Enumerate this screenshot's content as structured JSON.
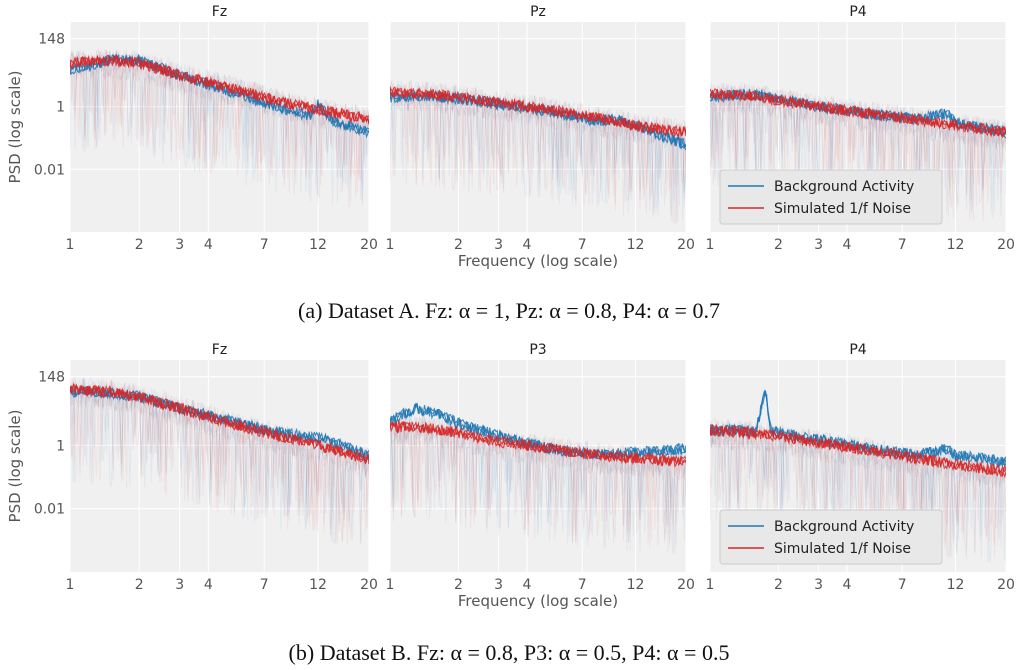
{
  "chart_data": {
    "ylabel": "PSD (log scale)",
    "xlabel": "Frequency (log scale)",
    "xscale": "log",
    "yscale": "log",
    "xlim": [
      1,
      20
    ],
    "ylim": [
      0.0001,
      500
    ],
    "x_ticks": [
      1,
      2,
      3,
      4,
      7,
      12,
      20
    ],
    "y_ticks": [
      148,
      1,
      0.01
    ],
    "legend_labels": [
      "Background Activity",
      "Simulated 1/f Noise"
    ],
    "colors": {
      "background_activity": "#1f77b4",
      "simulated_noise": "#d62728",
      "panel_bg": "#f0f0f0",
      "tick_text": "#555555"
    },
    "rows": [
      {
        "caption": "(a) Dataset A. Fz: α = 1, Pz: α = 0.8, P4: α = 0.7",
        "legend_panel": 2,
        "panels": [
          {
            "title": "Fz",
            "alpha": 1,
            "series": [
              {
                "label": "Background Activity",
                "points": [
                  [
                    1,
                    15
                  ],
                  [
                    1.5,
                    30
                  ],
                  [
                    2,
                    30
                  ],
                  [
                    3,
                    10
                  ],
                  [
                    5,
                    3
                  ],
                  [
                    8,
                    1
                  ],
                  [
                    11,
                    0.5
                  ],
                  [
                    12,
                    1.2
                  ],
                  [
                    14,
                    0.35
                  ],
                  [
                    20,
                    0.15
                  ]
                ]
              },
              {
                "label": "Simulated 1/f Noise",
                "points": [
                  [
                    1,
                    25
                  ],
                  [
                    1.5,
                    30
                  ],
                  [
                    2,
                    25
                  ],
                  [
                    3,
                    10
                  ],
                  [
                    5,
                    4
                  ],
                  [
                    8,
                    1.5
                  ],
                  [
                    12,
                    0.8
                  ],
                  [
                    20,
                    0.4
                  ]
                ]
              }
            ]
          },
          {
            "title": "Pz",
            "alpha": 0.8,
            "series": [
              {
                "label": "Background Activity",
                "points": [
                  [
                    1,
                    2
                  ],
                  [
                    1.5,
                    2.2
                  ],
                  [
                    2,
                    1.8
                  ],
                  [
                    3,
                    1.2
                  ],
                  [
                    5,
                    0.7
                  ],
                  [
                    8,
                    0.35
                  ],
                  [
                    10,
                    0.4
                  ],
                  [
                    12,
                    0.25
                  ],
                  [
                    20,
                    0.06
                  ]
                ]
              },
              {
                "label": "Simulated 1/f Noise",
                "points": [
                  [
                    1,
                    3
                  ],
                  [
                    1.5,
                    2.5
                  ],
                  [
                    2,
                    2
                  ],
                  [
                    3,
                    1.3
                  ],
                  [
                    5,
                    0.8
                  ],
                  [
                    8,
                    0.45
                  ],
                  [
                    12,
                    0.25
                  ],
                  [
                    20,
                    0.15
                  ]
                ]
              }
            ]
          },
          {
            "title": "P4",
            "alpha": 0.7,
            "series": [
              {
                "label": "Background Activity",
                "points": [
                  [
                    1,
                    2
                  ],
                  [
                    1.5,
                    2.5
                  ],
                  [
                    2,
                    1.8
                  ],
                  [
                    3,
                    1
                  ],
                  [
                    5,
                    0.6
                  ],
                  [
                    8,
                    0.4
                  ],
                  [
                    11,
                    0.6
                  ],
                  [
                    12,
                    0.3
                  ],
                  [
                    20,
                    0.15
                  ]
                ]
              },
              {
                "label": "Simulated 1/f Noise",
                "points": [
                  [
                    1,
                    2.5
                  ],
                  [
                    1.5,
                    2.2
                  ],
                  [
                    2,
                    1.6
                  ],
                  [
                    3,
                    1
                  ],
                  [
                    5,
                    0.6
                  ],
                  [
                    8,
                    0.4
                  ],
                  [
                    12,
                    0.25
                  ],
                  [
                    20,
                    0.15
                  ]
                ]
              }
            ]
          }
        ]
      },
      {
        "caption": "(b) Dataset B. Fz: α = 0.8, P3: α = 0.5, P4: α = 0.5",
        "legend_panel": 2,
        "panels": [
          {
            "title": "Fz",
            "alpha": 0.8,
            "series": [
              {
                "label": "Background Activity",
                "points": [
                  [
                    1,
                    50
                  ],
                  [
                    1.5,
                    45
                  ],
                  [
                    2,
                    35
                  ],
                  [
                    3,
                    15
                  ],
                  [
                    5,
                    6
                  ],
                  [
                    8,
                    2.5
                  ],
                  [
                    12,
                    1.8
                  ],
                  [
                    20,
                    0.5
                  ]
                ]
              },
              {
                "label": "Simulated 1/f Noise",
                "points": [
                  [
                    1,
                    60
                  ],
                  [
                    1.5,
                    50
                  ],
                  [
                    2,
                    35
                  ],
                  [
                    3,
                    15
                  ],
                  [
                    5,
                    5
                  ],
                  [
                    8,
                    2
                  ],
                  [
                    12,
                    1
                  ],
                  [
                    20,
                    0.35
                  ]
                ]
              }
            ]
          },
          {
            "title": "P3",
            "alpha": 0.5,
            "series": [
              {
                "label": "Background Activity",
                "points": [
                  [
                    1,
                    6
                  ],
                  [
                    1.3,
                    15
                  ],
                  [
                    1.6,
                    10
                  ],
                  [
                    2,
                    5
                  ],
                  [
                    3,
                    2
                  ],
                  [
                    5,
                    0.8
                  ],
                  [
                    8,
                    0.5
                  ],
                  [
                    12,
                    0.6
                  ],
                  [
                    20,
                    0.8
                  ]
                ]
              },
              {
                "label": "Simulated 1/f Noise",
                "points": [
                  [
                    1,
                    4
                  ],
                  [
                    1.5,
                    3.5
                  ],
                  [
                    2,
                    2.5
                  ],
                  [
                    3,
                    1.3
                  ],
                  [
                    5,
                    0.8
                  ],
                  [
                    8,
                    0.5
                  ],
                  [
                    12,
                    0.4
                  ],
                  [
                    20,
                    0.3
                  ]
                ]
              }
            ]
          },
          {
            "title": "P4",
            "alpha": 0.5,
            "series": [
              {
                "label": "Background Activity",
                "points": [
                  [
                    1,
                    3
                  ],
                  [
                    1.6,
                    3
                  ],
                  [
                    1.75,
                    60
                  ],
                  [
                    1.85,
                    3
                  ],
                  [
                    2,
                    2.5
                  ],
                  [
                    3,
                    1.5
                  ],
                  [
                    5,
                    0.8
                  ],
                  [
                    8,
                    0.5
                  ],
                  [
                    11,
                    0.8
                  ],
                  [
                    12,
                    0.5
                  ],
                  [
                    20,
                    0.3
                  ]
                ]
              },
              {
                "label": "Simulated 1/f Noise",
                "points": [
                  [
                    1,
                    3
                  ],
                  [
                    1.5,
                    2.5
                  ],
                  [
                    2,
                    2
                  ],
                  [
                    3,
                    1.2
                  ],
                  [
                    5,
                    0.7
                  ],
                  [
                    8,
                    0.4
                  ],
                  [
                    12,
                    0.25
                  ],
                  [
                    20,
                    0.15
                  ]
                ]
              }
            ]
          }
        ]
      }
    ]
  }
}
